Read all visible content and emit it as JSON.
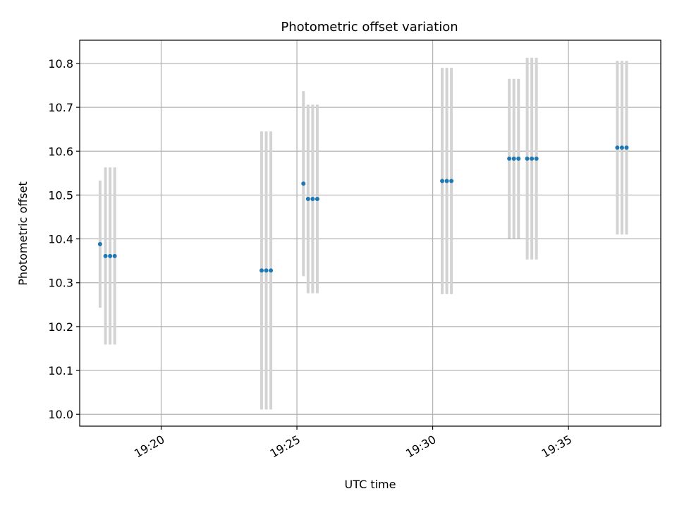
{
  "chart_data": {
    "type": "scatter",
    "title": "Photometric offset variation",
    "xlabel": "UTC time",
    "ylabel": "Photometric offset",
    "grid": true,
    "xlim": [
      1157.0,
      1178.4
    ],
    "ylim": [
      9.973,
      10.853
    ],
    "x_ticks": [
      {
        "value": 1160,
        "label": "19:20"
      },
      {
        "value": 1165,
        "label": "19:25"
      },
      {
        "value": 1170,
        "label": "19:30"
      },
      {
        "value": 1175,
        "label": "19:35"
      }
    ],
    "y_ticks": [
      {
        "value": 10.0,
        "label": "10.0"
      },
      {
        "value": 10.1,
        "label": "10.1"
      },
      {
        "value": 10.2,
        "label": "10.2"
      },
      {
        "value": 10.3,
        "label": "10.3"
      },
      {
        "value": 10.4,
        "label": "10.4"
      },
      {
        "value": 10.5,
        "label": "10.5"
      },
      {
        "value": 10.6,
        "label": "10.6"
      },
      {
        "value": 10.7,
        "label": "10.7"
      },
      {
        "value": 10.8,
        "label": "10.8"
      }
    ],
    "x_unit": "minutes after 19:00 expressed as minutes of day offset (x = minutes since 18:00 -> 19:20 = 1160)",
    "marker_color": "#1f77b4",
    "errorbar_color": "#d3d3d3",
    "points": [
      {
        "x": 1157.75,
        "y": 10.388,
        "err": 0.145
      },
      {
        "x": 1157.95,
        "y": 10.361,
        "err": 0.202
      },
      {
        "x": 1158.12,
        "y": 10.361,
        "err": 0.202
      },
      {
        "x": 1158.29,
        "y": 10.361,
        "err": 0.202
      },
      {
        "x": 1163.7,
        "y": 10.328,
        "err": 0.317
      },
      {
        "x": 1163.87,
        "y": 10.328,
        "err": 0.317
      },
      {
        "x": 1164.04,
        "y": 10.328,
        "err": 0.317
      },
      {
        "x": 1165.24,
        "y": 10.526,
        "err": 0.211
      },
      {
        "x": 1165.41,
        "y": 10.491,
        "err": 0.215
      },
      {
        "x": 1165.58,
        "y": 10.491,
        "err": 0.215
      },
      {
        "x": 1165.75,
        "y": 10.491,
        "err": 0.215
      },
      {
        "x": 1170.35,
        "y": 10.532,
        "err": 0.258
      },
      {
        "x": 1170.52,
        "y": 10.532,
        "err": 0.258
      },
      {
        "x": 1170.69,
        "y": 10.532,
        "err": 0.258
      },
      {
        "x": 1172.82,
        "y": 10.583,
        "err": 0.182
      },
      {
        "x": 1172.99,
        "y": 10.583,
        "err": 0.182
      },
      {
        "x": 1173.16,
        "y": 10.583,
        "err": 0.182
      },
      {
        "x": 1173.48,
        "y": 10.583,
        "err": 0.23
      },
      {
        "x": 1173.65,
        "y": 10.583,
        "err": 0.23
      },
      {
        "x": 1173.82,
        "y": 10.583,
        "err": 0.23
      },
      {
        "x": 1176.8,
        "y": 10.608,
        "err": 0.198
      },
      {
        "x": 1176.97,
        "y": 10.608,
        "err": 0.198
      },
      {
        "x": 1177.14,
        "y": 10.608,
        "err": 0.198
      }
    ]
  }
}
